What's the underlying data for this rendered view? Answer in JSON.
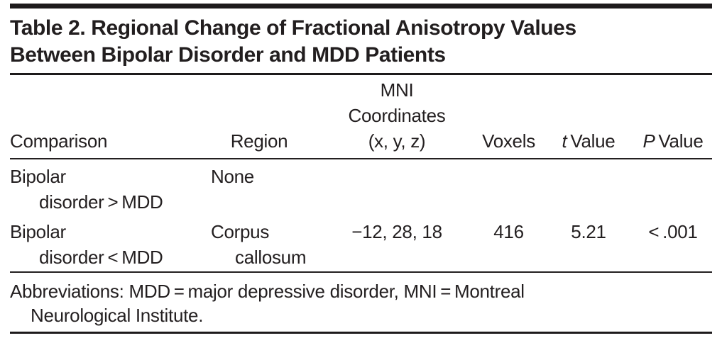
{
  "colors": {
    "text": "#231f20",
    "rule": "#1d1a1b",
    "background": "#ffffff"
  },
  "table": {
    "title_lines": [
      "Table 2. Regional Change of Fractional Anisotropy Values",
      "Between Bipolar Disorder and MDD Patients"
    ],
    "header": {
      "comparison": "Comparison",
      "region": "Region",
      "mni_lines": [
        "MNI",
        "Coordinates",
        "(x, y, z)"
      ],
      "voxels": "Voxels",
      "t_value": {
        "italic": "t",
        "rest": " Value"
      },
      "p_value": {
        "italic": "P",
        "rest": " Value"
      }
    },
    "rows": [
      {
        "comparison_line1": "Bipolar",
        "comparison_line2": "disorder > MDD",
        "region_line1": "None",
        "region_line2": "",
        "mni": "",
        "voxels": "",
        "t": "",
        "p": ""
      },
      {
        "comparison_line1": "Bipolar",
        "comparison_line2": "disorder < MDD",
        "region_line1": "Corpus",
        "region_line2": "callosum",
        "mni": "−12, 28, 18",
        "voxels": "416",
        "t": "5.21",
        "p": "< .001"
      }
    ],
    "footnote_lines": [
      "Abbreviations: MDD = major depressive disorder, MNI = Montreal",
      "Neurological Institute."
    ]
  }
}
